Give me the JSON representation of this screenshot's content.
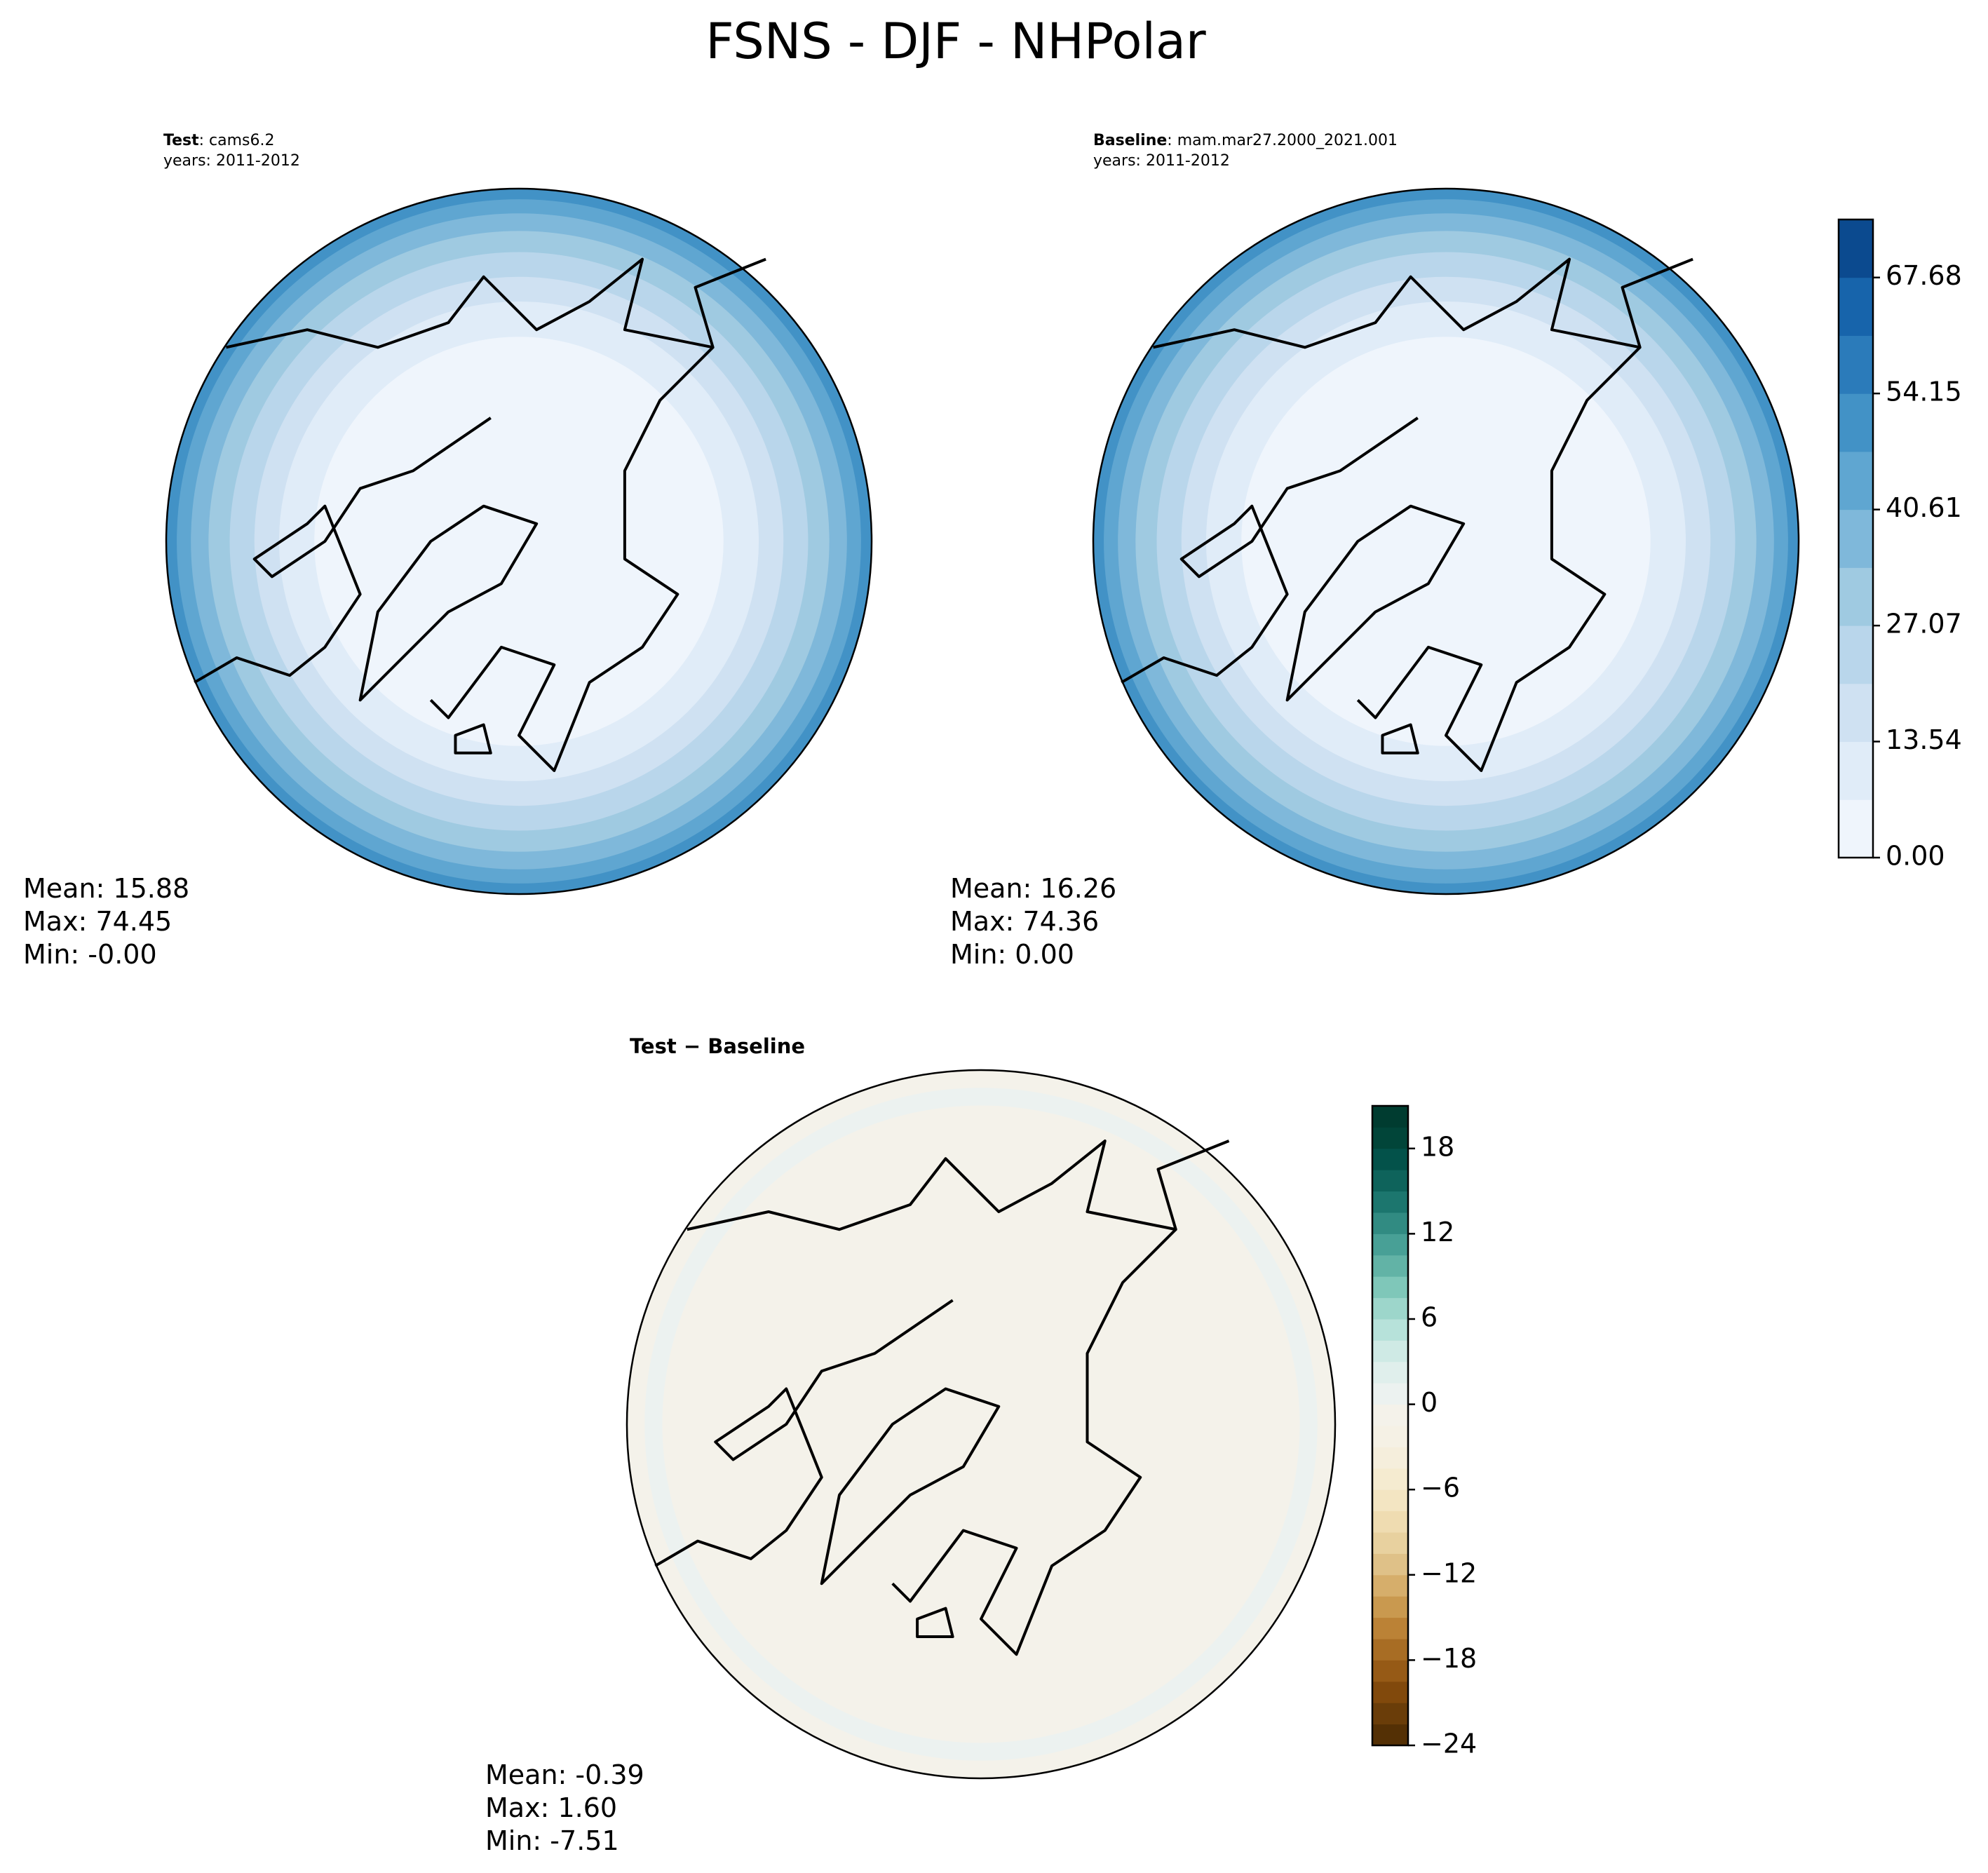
{
  "title": "FSNS - DJF - NHPolar",
  "panels": [
    {
      "name": "Test",
      "run": ": cams6.2",
      "years": "years: 2011-2012",
      "stats": [
        "Mean: 15.88",
        "Max: 74.45",
        "Min: -0.00"
      ]
    },
    {
      "name": "Baseline",
      "run": ": mam.mar27.2000_2021.001",
      "years": "years: 2011-2012",
      "stats": [
        "Mean: 16.26",
        "Max: 74.36",
        "Min:  0.00"
      ]
    },
    {
      "name": "Test − Baseline",
      "stats": [
        "Mean: -0.39",
        "Max:  1.60",
        "Min: -7.51"
      ]
    }
  ],
  "colorbars": [
    {
      "lim": [
        0,
        74.45
      ],
      "ticks": [
        {
          "value": 0,
          "label": "0.00"
        },
        13.54,
        27.07,
        40.61,
        54.15,
        67.68
      ],
      "colors": [
        "#eff5fc",
        "#e0ecf8",
        "#cfe1f2",
        "#b9d6eb",
        "#9fcae1",
        "#7fb8da",
        "#5fa6d1",
        "#4292c6",
        "#2b7bba",
        "#1764ab",
        "#0b4a8f"
      ]
    },
    {
      "lim": [
        -24,
        21
      ],
      "ticks": [
        {
          "value": -24,
          "label": "−24"
        },
        {
          "value": -18,
          "label": "−18"
        },
        {
          "value": -12,
          "label": "−12"
        },
        {
          "value": -6,
          "label": "−6"
        },
        0,
        6,
        12,
        18
      ],
      "colors": [
        "#543005",
        "#6a3d09",
        "#81490c",
        "#965a16",
        "#a86d24",
        "#bb8236",
        "#c9994f",
        "#d6ae6b",
        "#dfc188",
        "#e8d19f",
        "#efdcb1",
        "#f3e5c2",
        "#f5ebd0",
        "#f5eedc",
        "#f5f1e5",
        "#f4f2ea",
        "#ecf2f0",
        "#e0efec",
        "#cfeae5",
        "#b7e2da",
        "#9dd6cb",
        "#7fc7b9",
        "#62b3a6",
        "#48a096",
        "#318b82",
        "#1c766e",
        "#0e635b",
        "#03524a",
        "#014539",
        "#003c30"
      ]
    }
  ]
}
